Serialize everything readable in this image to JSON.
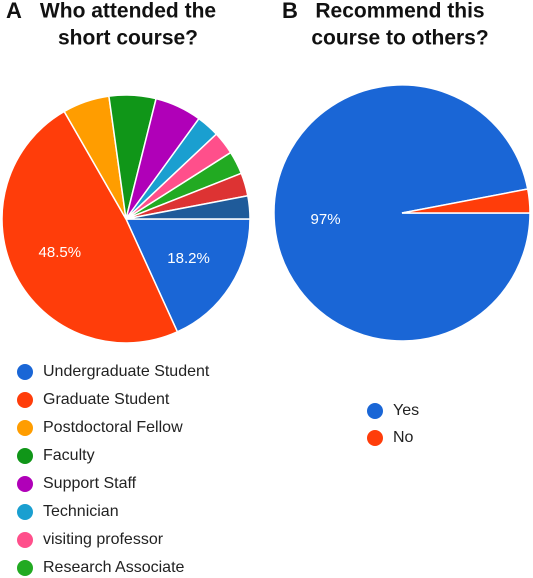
{
  "chart_data": [
    {
      "type": "pie",
      "panel": "A",
      "title": [
        "Who attended the",
        "short course?"
      ],
      "categories": [
        "Undergraduate Student",
        "Graduate Student",
        "Postdoctoral Fellow",
        "Faculty",
        "Support Staff",
        "Technician",
        "visiting professor",
        "Research Associate",
        null,
        null
      ],
      "values": [
        18.2,
        48.5,
        6.1,
        6.1,
        6.1,
        3,
        3,
        3,
        3,
        3
      ],
      "value_labels": [
        "18.2%",
        "48.5%",
        null,
        null,
        null,
        null,
        null,
        null,
        null,
        null
      ],
      "colors": [
        "#1a66d6",
        "#ff3d0a",
        "#ff9d00",
        "#109618",
        "#b000b8",
        "#1a9fd0",
        "#ff4f8b",
        "#22aa22",
        "#dd3333",
        "#1f5b9a"
      ]
    },
    {
      "type": "pie",
      "panel": "B",
      "title": [
        "Recommend this",
        "course to others?"
      ],
      "categories": [
        "Yes",
        "No"
      ],
      "values": [
        97,
        3
      ],
      "value_labels": [
        "97%",
        null
      ],
      "colors": [
        "#1a66d6",
        "#ff3d0a"
      ]
    }
  ]
}
